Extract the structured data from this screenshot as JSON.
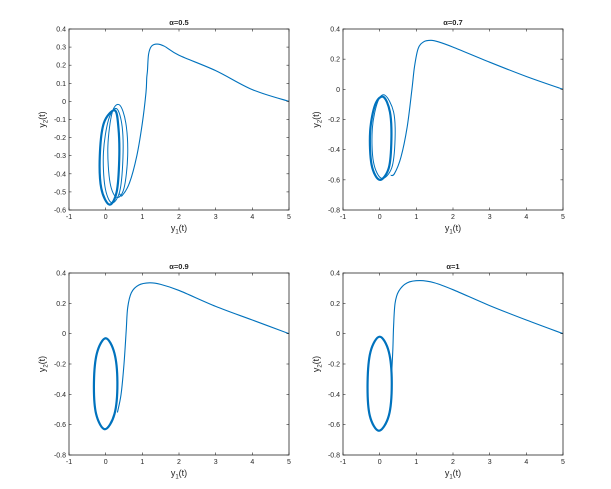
{
  "chart_data": [
    {
      "type": "line",
      "title": "α=0.5",
      "xlabel": {
        "base": "y",
        "sub": "1",
        "suffix": "(t)"
      },
      "ylabel": {
        "base": "y",
        "sub": "2",
        "suffix": "(t)"
      },
      "xlim": [
        -1,
        5
      ],
      "ylim": [
        -0.6,
        0.4
      ],
      "xticks": [
        -1,
        0,
        1,
        2,
        3,
        4,
        5
      ],
      "yticks": [
        -0.6,
        -0.5,
        -0.4,
        -0.3,
        -0.2,
        -0.1,
        0,
        0.1,
        0.2,
        0.3,
        0.4
      ],
      "color": "#0072BD",
      "transient": [
        [
          5,
          0
        ],
        [
          4,
          0.065
        ],
        [
          3,
          0.17
        ],
        [
          2,
          0.255
        ],
        [
          1.6,
          0.305
        ],
        [
          1.4,
          0.317
        ],
        [
          1.25,
          0.305
        ],
        [
          1.17,
          0.26
        ],
        [
          1.14,
          0.17
        ],
        [
          1.12,
          0.13
        ],
        [
          1.1,
          0.05
        ],
        [
          1.0,
          -0.12
        ],
        [
          0.85,
          -0.3
        ],
        [
          0.65,
          -0.45
        ],
        [
          0.45,
          -0.52
        ],
        [
          0.38,
          -0.51
        ]
      ],
      "cycles": [
        [
          [
            0.38,
            -0.02
          ],
          [
            0.55,
            -0.12
          ],
          [
            0.6,
            -0.3
          ],
          [
            0.5,
            -0.48
          ],
          [
            0.3,
            -0.53
          ],
          [
            0.12,
            -0.45
          ],
          [
            0.06,
            -0.25
          ],
          [
            0.18,
            -0.06
          ]
        ],
        [
          [
            0.3,
            -0.04
          ],
          [
            0.45,
            -0.14
          ],
          [
            0.47,
            -0.32
          ],
          [
            0.38,
            -0.5
          ],
          [
            0.16,
            -0.56
          ],
          [
            -0.02,
            -0.47
          ],
          [
            -0.06,
            -0.28
          ],
          [
            0.08,
            -0.1
          ]
        ],
        [
          [
            0.25,
            -0.05
          ],
          [
            0.35,
            -0.15
          ],
          [
            0.37,
            -0.32
          ],
          [
            0.3,
            -0.5
          ],
          [
            0.1,
            -0.57
          ],
          [
            -0.12,
            -0.48
          ],
          [
            -0.16,
            -0.3
          ],
          [
            -0.05,
            -0.12
          ]
        ]
      ]
    },
    {
      "type": "line",
      "title": "α=0.7",
      "xlabel": {
        "base": "y",
        "sub": "1",
        "suffix": "(t)"
      },
      "ylabel": {
        "base": "y",
        "sub": "2",
        "suffix": "(t)"
      },
      "xlim": [
        -1,
        5
      ],
      "ylim": [
        -0.8,
        0.4
      ],
      "xticks": [
        -1,
        0,
        1,
        2,
        3,
        4,
        5
      ],
      "yticks": [
        -0.8,
        -0.6,
        -0.4,
        -0.2,
        0,
        0.2,
        0.4
      ],
      "color": "#0072BD",
      "transient": [
        [
          5,
          0
        ],
        [
          4,
          0.085
        ],
        [
          3,
          0.18
        ],
        [
          2,
          0.28
        ],
        [
          1.6,
          0.315
        ],
        [
          1.4,
          0.325
        ],
        [
          1.2,
          0.315
        ],
        [
          1.05,
          0.27
        ],
        [
          0.95,
          0.15
        ],
        [
          0.88,
          0
        ],
        [
          0.75,
          -0.25
        ],
        [
          0.58,
          -0.45
        ],
        [
          0.4,
          -0.56
        ],
        [
          0.3,
          -0.57
        ]
      ],
      "cycles": [
        [
          [
            0.15,
            -0.04
          ],
          [
            0.38,
            -0.15
          ],
          [
            0.42,
            -0.33
          ],
          [
            0.33,
            -0.52
          ],
          [
            0.05,
            -0.59
          ],
          [
            -0.17,
            -0.48
          ],
          [
            -0.2,
            -0.26
          ],
          [
            -0.05,
            -0.08
          ]
        ],
        [
          [
            0.1,
            -0.05
          ],
          [
            0.28,
            -0.15
          ],
          [
            0.32,
            -0.33
          ],
          [
            0.25,
            -0.52
          ],
          [
            0.0,
            -0.6
          ],
          [
            -0.22,
            -0.5
          ],
          [
            -0.26,
            -0.28
          ],
          [
            -0.12,
            -0.1
          ]
        ]
      ]
    },
    {
      "type": "line",
      "title": "α=0.9",
      "xlabel": {
        "base": "y",
        "sub": "1",
        "suffix": "(t)"
      },
      "ylabel": {
        "base": "y",
        "sub": "2",
        "suffix": "(t)"
      },
      "xlim": [
        -1,
        5
      ],
      "ylim": [
        -0.8,
        0.4
      ],
      "xticks": [
        -1,
        0,
        1,
        2,
        3,
        4,
        5
      ],
      "yticks": [
        -0.8,
        -0.6,
        -0.4,
        -0.2,
        0,
        0.2,
        0.4
      ],
      "color": "#0072BD",
      "transient": [
        [
          5,
          0
        ],
        [
          4,
          0.09
        ],
        [
          3,
          0.18
        ],
        [
          2,
          0.285
        ],
        [
          1.5,
          0.325
        ],
        [
          1.2,
          0.335
        ],
        [
          0.9,
          0.32
        ],
        [
          0.7,
          0.27
        ],
        [
          0.6,
          0.17
        ],
        [
          0.56,
          0.02
        ],
        [
          0.5,
          -0.2
        ],
        [
          0.42,
          -0.4
        ],
        [
          0.32,
          -0.52
        ]
      ],
      "cycles": [
        [
          [
            0.0,
            -0.03
          ],
          [
            0.24,
            -0.13
          ],
          [
            0.32,
            -0.33
          ],
          [
            0.24,
            -0.53
          ],
          [
            -0.02,
            -0.63
          ],
          [
            -0.26,
            -0.53
          ],
          [
            -0.32,
            -0.33
          ],
          [
            -0.24,
            -0.13
          ]
        ]
      ]
    },
    {
      "type": "line",
      "title": "α=1",
      "xlabel": {
        "base": "y",
        "sub": "1",
        "suffix": "(t)"
      },
      "ylabel": {
        "base": "y",
        "sub": "2",
        "suffix": "(t)"
      },
      "xlim": [
        -1,
        5
      ],
      "ylim": [
        -0.8,
        0.4
      ],
      "xticks": [
        -1,
        0,
        1,
        2,
        3,
        4,
        5
      ],
      "yticks": [
        -0.8,
        -0.6,
        -0.4,
        -0.2,
        0,
        0.2,
        0.4
      ],
      "color": "#0072BD",
      "transient": [
        [
          5,
          0
        ],
        [
          4,
          0.09
        ],
        [
          3,
          0.185
        ],
        [
          2,
          0.29
        ],
        [
          1.5,
          0.335
        ],
        [
          1.1,
          0.35
        ],
        [
          0.75,
          0.335
        ],
        [
          0.52,
          0.28
        ],
        [
          0.42,
          0.2
        ],
        [
          0.38,
          0.05
        ],
        [
          0.36,
          -0.1
        ],
        [
          0.33,
          -0.25
        ]
      ],
      "cycles": [
        [
          [
            0.0,
            -0.02
          ],
          [
            0.25,
            -0.12
          ],
          [
            0.33,
            -0.33
          ],
          [
            0.25,
            -0.54
          ],
          [
            -0.02,
            -0.64
          ],
          [
            -0.27,
            -0.54
          ],
          [
            -0.33,
            -0.33
          ],
          [
            -0.25,
            -0.12
          ]
        ]
      ]
    }
  ]
}
